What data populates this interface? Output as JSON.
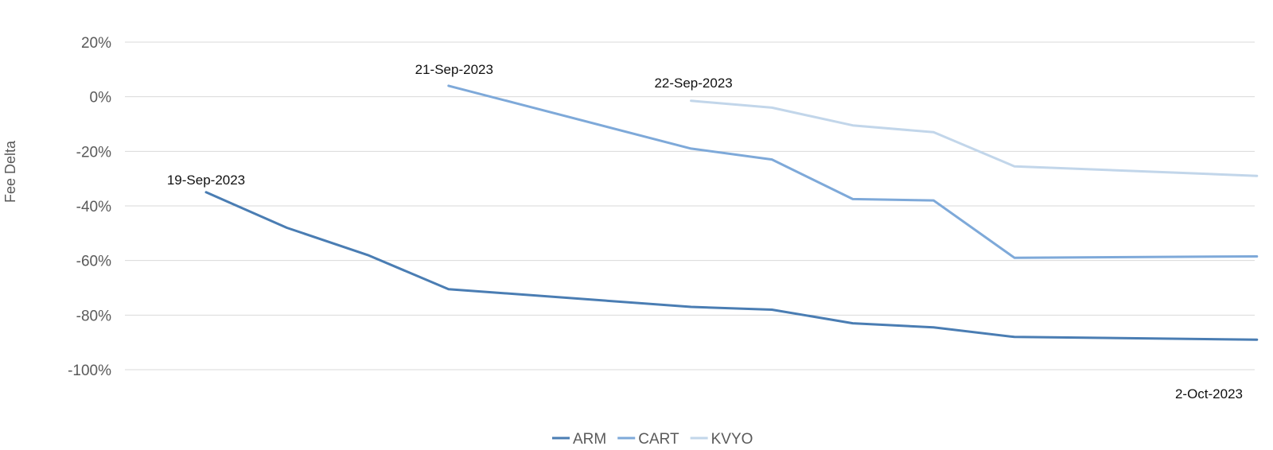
{
  "chart_data": {
    "type": "line",
    "title": "",
    "xlabel": "",
    "ylabel": "Fee Delta",
    "ylim": [
      -100,
      20
    ],
    "yticks": [
      20,
      0,
      -20,
      -40,
      -60,
      -80,
      -100
    ],
    "ytick_labels": [
      "20%",
      "0%",
      "-20%",
      "-40%",
      "-60%",
      "-80%",
      "-100%"
    ],
    "grid": true,
    "legend_position": "bottom",
    "x": [
      0,
      1,
      2,
      3,
      4,
      5,
      6,
      7,
      8,
      9,
      10,
      11,
      12,
      13
    ],
    "series": [
      {
        "name": "ARM",
        "color": "#4a7db3",
        "values": [
          -35,
          -48,
          -58,
          -70.5,
          null,
          null,
          -77,
          -78,
          -83,
          -84.5,
          -88,
          null,
          null,
          -89
        ]
      },
      {
        "name": "CART",
        "color": "#7ea9d9",
        "values": [
          null,
          null,
          null,
          4,
          null,
          null,
          -19,
          -23,
          -37.5,
          -38,
          -59,
          null,
          null,
          -58.5
        ]
      },
      {
        "name": "KVYO",
        "color": "#c2d6ea",
        "values": [
          null,
          null,
          null,
          null,
          null,
          null,
          -1.5,
          -4,
          -10.5,
          -13,
          -25.5,
          null,
          null,
          -29
        ]
      }
    ],
    "annotations": [
      {
        "text": "19-Sep-2023",
        "x": 0,
        "y": -35
      },
      {
        "text": "21-Sep-2023",
        "x": 3,
        "y": 4
      },
      {
        "text": "22-Sep-2023",
        "x": 6,
        "y": -1.5
      },
      {
        "text": "2-Oct-2023",
        "x": 13,
        "y": -100
      }
    ]
  }
}
